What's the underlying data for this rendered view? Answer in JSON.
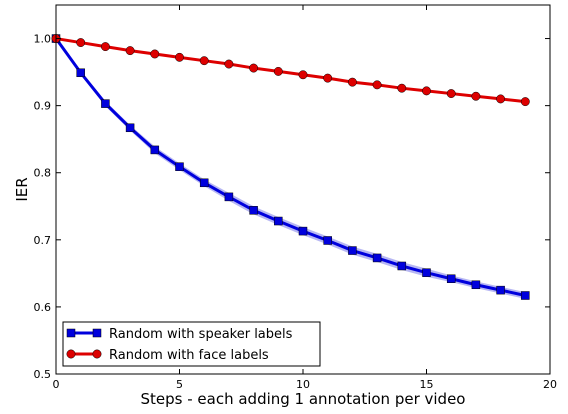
{
  "chart_data": {
    "type": "line",
    "title": "",
    "xlabel": "Steps - each adding 1 annotation per video",
    "ylabel": "IER",
    "xlim": [
      0,
      20
    ],
    "ylim": [
      0.5,
      1.05
    ],
    "x_ticks": [
      0,
      5,
      10,
      15,
      20
    ],
    "y_ticks": [
      0.5,
      0.6,
      0.7,
      0.8,
      0.9,
      1.0
    ],
    "x_tick_labels": [
      "0",
      "5",
      "10",
      "15",
      "20"
    ],
    "y_tick_labels": [
      "0.5",
      "0.6",
      "0.7",
      "0.8",
      "0.9",
      "1.0"
    ],
    "grid": false,
    "legend_position": "bottom-left",
    "x": [
      0,
      1,
      2,
      3,
      4,
      5,
      6,
      7,
      8,
      9,
      10,
      11,
      12,
      13,
      14,
      15,
      16,
      17,
      18,
      19
    ],
    "series": [
      {
        "name": "Random with speaker labels",
        "color": "#0000dd",
        "band_color": "#9999ee",
        "marker": "square",
        "values": [
          1.0,
          0.949,
          0.903,
          0.867,
          0.834,
          0.809,
          0.785,
          0.764,
          0.744,
          0.728,
          0.713,
          0.699,
          0.684,
          0.673,
          0.661,
          0.651,
          0.642,
          0.633,
          0.625,
          0.617
        ],
        "band": [
          0.0,
          0.003,
          0.004,
          0.004,
          0.005,
          0.005,
          0.005,
          0.006,
          0.006,
          0.006,
          0.006,
          0.006,
          0.006,
          0.006,
          0.006,
          0.006,
          0.005,
          0.005,
          0.005,
          0.005
        ]
      },
      {
        "name": "Random with face labels",
        "color": "#dd0000",
        "band_color": "#ee9999",
        "marker": "circle",
        "values": [
          1.0,
          0.994,
          0.988,
          0.982,
          0.977,
          0.972,
          0.967,
          0.962,
          0.956,
          0.951,
          0.946,
          0.941,
          0.935,
          0.931,
          0.926,
          0.922,
          0.918,
          0.914,
          0.91,
          0.906
        ],
        "band": [
          0.0,
          0.001,
          0.001,
          0.001,
          0.001,
          0.001,
          0.001,
          0.001,
          0.001,
          0.001,
          0.001,
          0.001,
          0.001,
          0.001,
          0.001,
          0.001,
          0.001,
          0.001,
          0.001,
          0.001
        ]
      }
    ]
  }
}
